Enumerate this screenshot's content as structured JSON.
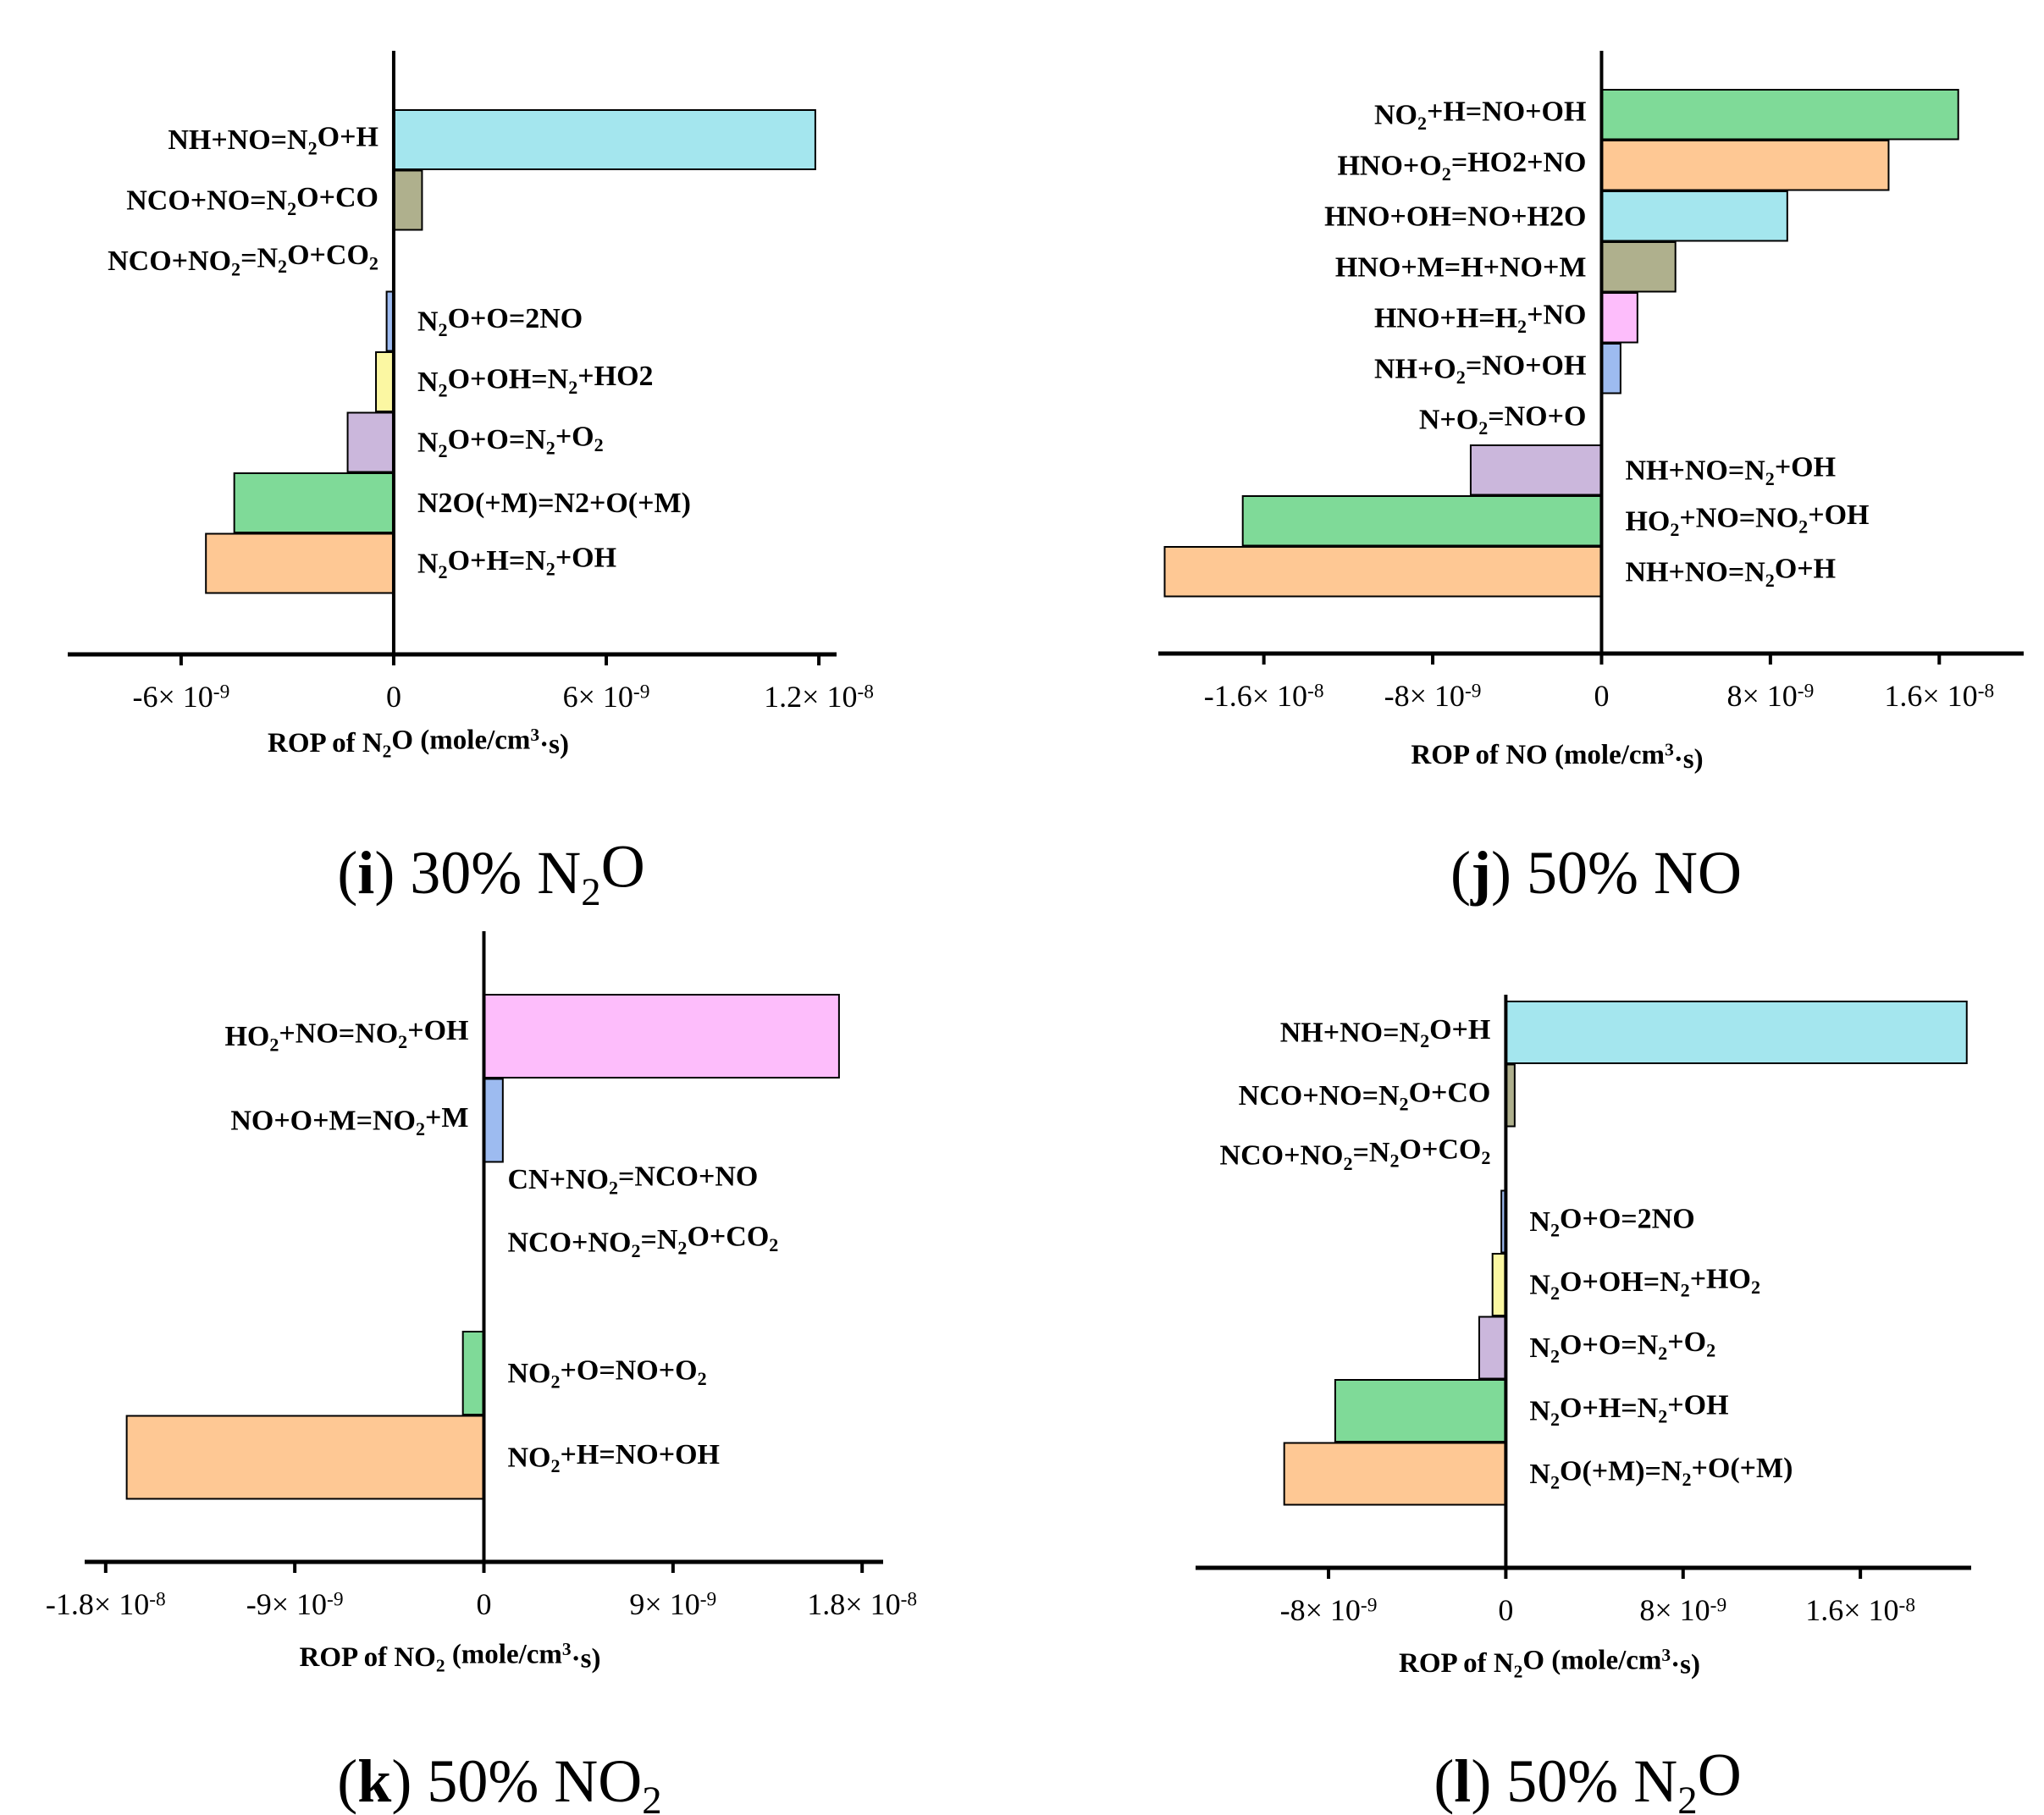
{
  "colors": {
    "cyan": "#a4e6ee",
    "olive": "#afb08d",
    "blue": "#9dbbf0",
    "yellow": "#fbf7a2",
    "lavender": "#cbb7dc",
    "green": "#7fda98",
    "orange": "#fec894",
    "pink": "#fdbdfb"
  },
  "chart_data": [
    {
      "id": "i",
      "type": "bar",
      "orientation": "horizontal",
      "caption": {
        "label": "i",
        "text": " 30% N₂O"
      },
      "xlabel": "ROP of N₂O (mole/cm³·s)",
      "xlim": [
        -9.2e-09,
        1.25e-08
      ],
      "ticks": [
        {
          "value": -6e-09,
          "label": "-6× 10⁻⁹"
        },
        {
          "value": 0,
          "label": "0"
        },
        {
          "value": 6e-09,
          "label": "6× 10⁻⁹"
        },
        {
          "value": 1.2e-08,
          "label": "1.2× 10⁻⁸"
        }
      ],
      "bars": [
        {
          "label": "NH+NO=N₂O+H",
          "value": 1.19e-08,
          "color": "cyan",
          "label_side": "left"
        },
        {
          "label": "NCO+NO=N₂O+CO",
          "value": 8e-10,
          "color": "olive",
          "label_side": "left"
        },
        {
          "label": "NCO+NO₂=N₂O+CO₂",
          "value": 0,
          "color": "none",
          "label_side": "left"
        },
        {
          "label": "N₂O+O=2NO",
          "value": -2e-10,
          "color": "blue",
          "label_side": "right"
        },
        {
          "label": "N₂O+OH=N₂+HO2",
          "value": -5e-10,
          "color": "yellow",
          "label_side": "right"
        },
        {
          "label": "N₂O+O=N₂+O₂",
          "value": -1.3e-09,
          "color": "lavender",
          "label_side": "right"
        },
        {
          "label": "N2O(+M)=N2+O(+M)",
          "value": -4.5e-09,
          "color": "green",
          "label_side": "right"
        },
        {
          "label": "N₂O+H=N₂+OH",
          "value": -5.3e-09,
          "color": "orange",
          "label_side": "right"
        }
      ]
    },
    {
      "id": "j",
      "type": "bar",
      "orientation": "horizontal",
      "caption": {
        "label": "j",
        "text": " 50% NO"
      },
      "xlabel": "ROP of NO (mole/cm³·s)",
      "xlim": [
        -2.1e-08,
        2e-08
      ],
      "ticks": [
        {
          "value": -1.6e-08,
          "label": "-1.6× 10⁻⁸"
        },
        {
          "value": -8e-09,
          "label": "-8× 10⁻⁹"
        },
        {
          "value": 0,
          "label": "0"
        },
        {
          "value": 8e-09,
          "label": "8× 10⁻⁹"
        },
        {
          "value": 1.6e-08,
          "label": "1.6× 10⁻⁸"
        }
      ],
      "bars": [
        {
          "label": "NO₂+H=NO+OH",
          "value": 1.69e-08,
          "color": "green",
          "label_side": "left"
        },
        {
          "label": "HNO+O₂=HO2+NO",
          "value": 1.36e-08,
          "color": "orange",
          "label_side": "left"
        },
        {
          "label": "HNO+OH=NO+H2O",
          "value": 8.8e-09,
          "color": "cyan",
          "label_side": "left"
        },
        {
          "label": "HNO+M=H+NO+M",
          "value": 3.5e-09,
          "color": "olive",
          "label_side": "left"
        },
        {
          "label": "HNO+H=H₂+NO",
          "value": 1.7e-09,
          "color": "pink",
          "label_side": "left"
        },
        {
          "label": "NH+O₂=NO+OH",
          "value": 9e-10,
          "color": "blue",
          "label_side": "left"
        },
        {
          "label": "N+O₂=NO+O",
          "value": 0,
          "color": "none",
          "label_side": "left"
        },
        {
          "label": "NH+NO=N₂+OH",
          "value": -6.2e-09,
          "color": "lavender",
          "label_side": "right"
        },
        {
          "label": "HO₂+NO=NO₂+OH",
          "value": -1.7e-08,
          "color": "green",
          "label_side": "right"
        },
        {
          "label": "NH+NO=N₂O+H",
          "value": -2.07e-08,
          "color": "orange",
          "label_side": "right"
        }
      ]
    },
    {
      "id": "k",
      "type": "bar",
      "orientation": "horizontal",
      "caption": {
        "label": "k",
        "text": " 50% NO₂"
      },
      "xlabel": "ROP of NO₂ (mole/cm³·s)",
      "xlim": [
        -1.9e-08,
        1.9e-08
      ],
      "ticks": [
        {
          "value": -1.8e-08,
          "label": "-1.8× 10⁻⁸"
        },
        {
          "value": -9e-09,
          "label": "-9× 10⁻⁹"
        },
        {
          "value": 0,
          "label": "0"
        },
        {
          "value": 9e-09,
          "label": "9× 10⁻⁹"
        },
        {
          "value": 1.8e-08,
          "label": "1.8× 10⁻⁸"
        }
      ],
      "bars": [
        {
          "label": "HO₂+NO=NO₂+OH",
          "value": 1.69e-08,
          "color": "pink",
          "label_side": "left"
        },
        {
          "label": "NO+O+M=NO₂+M",
          "value": 9e-10,
          "color": "blue",
          "label_side": "left"
        },
        {
          "label": "CN+NO₂=NCO+NO",
          "value": 0,
          "color": "none",
          "label_side": "right"
        },
        {
          "label": "NCO+NO₂=N₂O+CO₂",
          "value": 0,
          "color": "none",
          "label_side": "right"
        },
        {
          "label": "NO₂+O=NO+O₂",
          "value": -1e-09,
          "color": "green",
          "label_side": "right"
        },
        {
          "label": "NO₂+H=NO+OH",
          "value": -1.7e-08,
          "color": "orange",
          "label_side": "right"
        }
      ]
    },
    {
      "id": "l",
      "type": "bar",
      "orientation": "horizontal",
      "caption": {
        "label": "l",
        "text": " 50% N₂O"
      },
      "xlabel": "ROP of N₂O (mole/cm³·s)",
      "xlim": [
        -1.4e-08,
        2.1e-08
      ],
      "ticks": [
        {
          "value": -8e-09,
          "label": "-8× 10⁻⁹"
        },
        {
          "value": 0,
          "label": "0"
        },
        {
          "value": 8e-09,
          "label": "8× 10⁻⁹"
        },
        {
          "value": 1.6e-08,
          "label": "1.6× 10⁻⁸"
        }
      ],
      "bars": [
        {
          "label": "NH+NO=N₂O+H",
          "value": 2.08e-08,
          "color": "cyan",
          "label_side": "left"
        },
        {
          "label": "NCO+NO=N₂O+CO",
          "value": 4e-10,
          "color": "olive",
          "label_side": "left"
        },
        {
          "label": "NCO+NO₂=N₂O+CO₂",
          "value": 0,
          "color": "none",
          "label_side": "left"
        },
        {
          "label": "N₂O+O=2NO",
          "value": -2e-10,
          "color": "blue",
          "label_side": "right"
        },
        {
          "label": "N₂O+OH=N₂+HO₂",
          "value": -6e-10,
          "color": "yellow",
          "label_side": "right"
        },
        {
          "label": "N₂O+O=N₂+O₂",
          "value": -1.2e-09,
          "color": "lavender",
          "label_side": "right"
        },
        {
          "label": "N₂O+H=N₂+OH",
          "value": -7.7e-09,
          "color": "green",
          "label_side": "right"
        },
        {
          "label": "N₂O(+M)=N₂+O(+M)",
          "value": -1e-08,
          "color": "orange",
          "label_side": "right"
        }
      ]
    }
  ]
}
